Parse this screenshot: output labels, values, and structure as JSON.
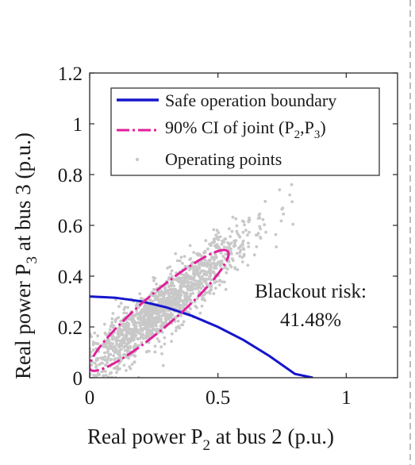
{
  "chart_data": {
    "type": "scatter",
    "title": "",
    "xlabel": {
      "prefix": "Real power P",
      "sub": "2",
      "suffix": " at bus 2 (p.u.)"
    },
    "ylabel": {
      "prefix": "Real power P",
      "sub": "3",
      "suffix": " at bus 3 (p.u.)"
    },
    "xlim": [
      0,
      1.2
    ],
    "ylim": [
      0,
      1.2
    ],
    "xticks": [
      0,
      0.5,
      1
    ],
    "xtick_labels": [
      "0",
      "0.5",
      "1"
    ],
    "yticks": [
      0,
      0.2,
      0.4,
      0.6,
      0.8,
      1,
      1.2
    ],
    "ytick_labels": [
      "0",
      "0.2",
      "0.4",
      "0.6",
      "0.8",
      "1",
      "1.2"
    ],
    "grid": false,
    "legend_position": "top-right",
    "colors": {
      "boundary": "#1515cc",
      "ellipse": "#e0209a",
      "points": "#c8c8c8"
    },
    "series": [
      {
        "name": "Safe operation boundary",
        "kind": "line",
        "x": [
          0,
          0.1,
          0.2,
          0.3,
          0.4,
          0.5,
          0.6,
          0.7,
          0.8,
          0.87
        ],
        "y": [
          0.32,
          0.315,
          0.301,
          0.277,
          0.243,
          0.2,
          0.148,
          0.086,
          0.015,
          0
        ]
      },
      {
        "name": "90% CI of joint (P2,P3)",
        "legend_label": {
          "prefix": "90% CI of joint (P",
          "sub1": "2",
          "mid": ",P",
          "sub2": "3",
          "suffix": ")"
        },
        "kind": "ellipse",
        "center": [
          0.27,
          0.265
        ],
        "semi_major": 0.355,
        "semi_minor": 0.065,
        "angle_deg": 41
      },
      {
        "name": "Operating points",
        "kind": "scatter",
        "count": 1500,
        "mean": [
          0.27,
          0.265
        ],
        "outliers": [
          [
            0.74,
            0.74
          ],
          [
            0.78,
            0.72
          ],
          [
            0.62,
            0.62
          ],
          [
            0.66,
            0.64
          ]
        ]
      }
    ],
    "annotations": [
      {
        "text": "Blackout risk:",
        "x": 1.0,
        "y": 0.34
      },
      {
        "text": "41.48%",
        "x": 0.92,
        "y": 0.22
      }
    ]
  }
}
